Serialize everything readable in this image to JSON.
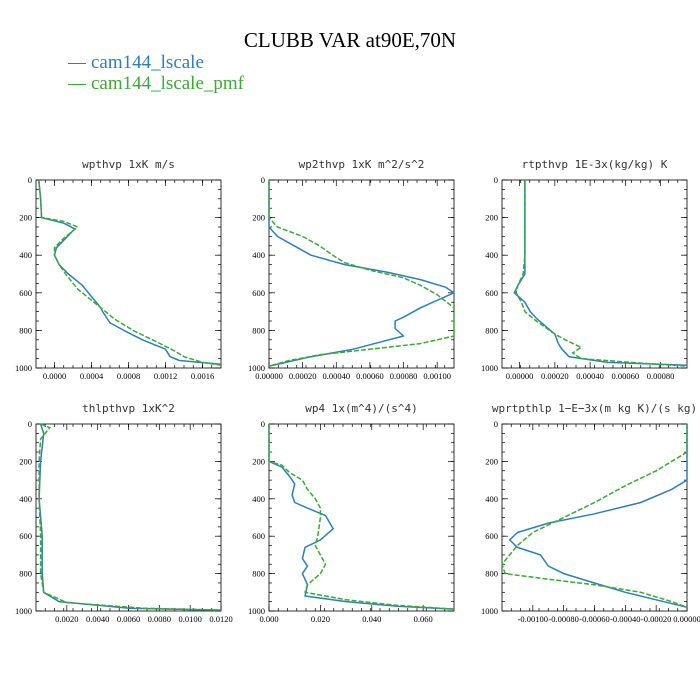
{
  "title": "CLUBB VAR at90E,70N",
  "legend": [
    {
      "label": "cam144_lscale",
      "color": "#2e7ebc"
    },
    {
      "label": "cam144_lscale_pmf",
      "color": "#3aa935"
    }
  ],
  "chart_data": [
    {
      "type": "line",
      "title": "wpthvp   1xK m/s",
      "xlim": [
        -0.0002,
        0.0018
      ],
      "ylim": [
        1000,
        0
      ],
      "xticks": [
        0,
        0.0004,
        0.0008,
        0.0012,
        0.0016
      ],
      "xtick_labels": [
        "0.0000",
        "0.0004",
        "0.0008",
        "0.0012",
        "0.0016"
      ],
      "yticks": [
        0,
        200,
        400,
        600,
        800,
        1000
      ],
      "ytick_labels": [
        "0",
        "200",
        "400",
        "600",
        "800",
        "1000"
      ],
      "series": [
        {
          "name": "cam144_lscale",
          "points": [
            [
              -0.00017,
              0
            ],
            [
              -0.00015,
              100
            ],
            [
              -0.00014,
              200
            ],
            [
              0.0001,
              230
            ],
            [
              0.00022,
              260
            ],
            [
              0.00012,
              310
            ],
            [
              2e-05,
              360
            ],
            [
              0.0,
              400
            ],
            [
              5e-05,
              450
            ],
            [
              0.00015,
              500
            ],
            [
              0.0003,
              560
            ],
            [
              0.0004,
              620
            ],
            [
              0.0005,
              680
            ],
            [
              0.00052,
              700
            ],
            [
              0.0006,
              760
            ],
            [
              0.00075,
              800
            ],
            [
              0.00095,
              850
            ],
            [
              0.0012,
              900
            ],
            [
              0.00125,
              940
            ],
            [
              0.00135,
              960
            ],
            [
              0.0018,
              980
            ]
          ]
        },
        {
          "name": "cam144_lscale_pmf",
          "points": [
            [
              -0.00017,
              0
            ],
            [
              -0.00015,
              100
            ],
            [
              -0.00014,
              200
            ],
            [
              0.0001,
              220
            ],
            [
              0.00025,
              250
            ],
            [
              0.0001,
              310
            ],
            [
              0.0,
              360
            ],
            [
              0.0,
              400
            ],
            [
              5e-05,
              450
            ],
            [
              0.00012,
              500
            ],
            [
              0.00025,
              580
            ],
            [
              0.0004,
              640
            ],
            [
              0.0005,
              680
            ],
            [
              0.00065,
              740
            ],
            [
              0.00085,
              800
            ],
            [
              0.0011,
              860
            ],
            [
              0.0013,
              910
            ],
            [
              0.0014,
              940
            ],
            [
              0.0016,
              970
            ],
            [
              0.0018,
              985
            ]
          ]
        }
      ]
    },
    {
      "type": "line",
      "title": "wp2thvp   1xK m^2/s^2",
      "xlim": [
        0,
        0.0011
      ],
      "ylim": [
        1000,
        0
      ],
      "xticks": [
        0,
        0.0002,
        0.0004,
        0.0006,
        0.0008,
        0.001
      ],
      "xtick_labels": [
        "0.00000",
        "0.00020",
        "0.00040",
        "0.00060",
        "0.00080",
        "0.00100"
      ],
      "yticks": [
        0,
        200,
        400,
        600,
        800,
        1000
      ],
      "ytick_labels": [
        "0",
        "200",
        "400",
        "600",
        "800",
        "1000"
      ],
      "series": [
        {
          "name": "cam144_lscale",
          "points": [
            [
              0,
              0
            ],
            [
              0,
              200
            ],
            [
              0,
              250
            ],
            [
              5e-05,
              300
            ],
            [
              0.00015,
              350
            ],
            [
              0.00025,
              400
            ],
            [
              0.00045,
              450
            ],
            [
              0.0007,
              490
            ],
            [
              0.0009,
              530
            ],
            [
              0.00105,
              570
            ],
            [
              0.0011,
              600
            ],
            [
              0.001,
              640
            ],
            [
              0.0009,
              680
            ],
            [
              0.0008,
              730
            ],
            [
              0.00075,
              750
            ],
            [
              0.00075,
              790
            ],
            [
              0.0008,
              830
            ],
            [
              0.0005,
              900
            ],
            [
              0.00025,
              940
            ],
            [
              0.0001,
              970
            ],
            [
              0,
              990
            ]
          ]
        },
        {
          "name": "cam144_lscale_pmf",
          "points": [
            [
              0,
              0
            ],
            [
              0,
              200
            ],
            [
              5e-05,
              250
            ],
            [
              0.0002,
              300
            ],
            [
              0.0003,
              350
            ],
            [
              0.00038,
              400
            ],
            [
              0.00045,
              440
            ],
            [
              0.0006,
              480
            ],
            [
              0.0008,
              520
            ],
            [
              0.0009,
              560
            ],
            [
              0.001,
              610
            ],
            [
              0.0011,
              680
            ],
            [
              0.0011,
              750
            ],
            [
              0.0011,
              830
            ],
            [
              0.0009,
              870
            ],
            [
              0.0006,
              900
            ],
            [
              0.0003,
              930
            ],
            [
              0.00012,
              960
            ],
            [
              0,
              990
            ]
          ]
        }
      ]
    },
    {
      "type": "line",
      "title": "rtpthvp   1E-3x(kg/kg) K",
      "xlim": [
        -0.0001,
        0.00095
      ],
      "ylim": [
        1000,
        0
      ],
      "xticks": [
        0,
        0.0002,
        0.0004,
        0.0006,
        0.0008
      ],
      "xtick_labels": [
        "0.00000",
        "0.00020",
        "0.00040",
        "0.00060",
        "0.00080"
      ],
      "yticks": [
        0,
        200,
        400,
        600,
        800,
        1000
      ],
      "ytick_labels": [
        "0",
        "200",
        "400",
        "600",
        "800",
        "1000"
      ],
      "series": [
        {
          "name": "cam144_lscale",
          "points": [
            [
              3e-05,
              0
            ],
            [
              3e-05,
              250
            ],
            [
              3e-05,
              400
            ],
            [
              3e-05,
              500
            ],
            [
              -1e-05,
              560
            ],
            [
              -3e-05,
              600
            ],
            [
              3e-05,
              650
            ],
            [
              6e-05,
              700
            ],
            [
              0.0001,
              740
            ],
            [
              0.00015,
              780
            ],
            [
              0.0002,
              820
            ],
            [
              0.00022,
              870
            ],
            [
              0.00024,
              900
            ],
            [
              0.00028,
              940
            ],
            [
              0.0005,
              970
            ],
            [
              0.00095,
              985
            ]
          ]
        },
        {
          "name": "cam144_lscale_pmf",
          "points": [
            [
              3e-05,
              0
            ],
            [
              3e-05,
              250
            ],
            [
              3e-05,
              400
            ],
            [
              2e-05,
              500
            ],
            [
              -1e-05,
              560
            ],
            [
              -2e-05,
              600
            ],
            [
              1e-05,
              650
            ],
            [
              3e-05,
              700
            ],
            [
              8e-05,
              740
            ],
            [
              0.00014,
              780
            ],
            [
              0.0002,
              820
            ],
            [
              0.00028,
              860
            ],
            [
              0.00035,
              890
            ],
            [
              0.0003,
              920
            ],
            [
              0.00035,
              950
            ],
            [
              0.0007,
              975
            ],
            [
              0.00095,
              990
            ]
          ]
        }
      ]
    },
    {
      "type": "line",
      "title": "thlpthvp   1xK^2",
      "xlim": [
        0,
        0.012
      ],
      "ylim": [
        1000,
        0
      ],
      "xticks": [
        0.002,
        0.004,
        0.006,
        0.008,
        0.01,
        0.012
      ],
      "xtick_labels": [
        "0.0020",
        "0.0040",
        "0.0060",
        "0.0080",
        "0.0100",
        "0.0120"
      ],
      "yticks": [
        0,
        200,
        400,
        600,
        800,
        1000
      ],
      "ytick_labels": [
        "0",
        "200",
        "400",
        "600",
        "800",
        "1000"
      ],
      "series": [
        {
          "name": "cam144_lscale",
          "points": [
            [
              0.0003,
              0
            ],
            [
              0.0005,
              50
            ],
            [
              0.0003,
              200
            ],
            [
              0.0002,
              400
            ],
            [
              0.0004,
              600
            ],
            [
              0.0004,
              800
            ],
            [
              0.0005,
              900
            ],
            [
              0.0015,
              950
            ],
            [
              0.006,
              985
            ],
            [
              0.012,
              995
            ]
          ]
        },
        {
          "name": "cam144_lscale_pmf",
          "points": [
            [
              0.0003,
              0
            ],
            [
              0.0009,
              20
            ],
            [
              0.0003,
              80
            ],
            [
              0.0002,
              200
            ],
            [
              0.0002,
              400
            ],
            [
              0.0003,
              600
            ],
            [
              0.0003,
              800
            ],
            [
              0.0005,
              900
            ],
            [
              0.002,
              955
            ],
            [
              0.007,
              985
            ],
            [
              0.012,
              995
            ]
          ]
        }
      ]
    },
    {
      "type": "line",
      "title": "wp4   1x(m^4)/(s^4)",
      "xlim": [
        0,
        0.072
      ],
      "ylim": [
        1000,
        0
      ],
      "xticks": [
        0,
        0.02,
        0.04,
        0.06
      ],
      "xtick_labels": [
        "0.000",
        "0.020",
        "0.040",
        "0.060"
      ],
      "yticks": [
        0,
        200,
        400,
        600,
        800,
        1000
      ],
      "ytick_labels": [
        "0",
        "200",
        "400",
        "600",
        "800",
        "1000"
      ],
      "series": [
        {
          "name": "cam144_lscale",
          "points": [
            [
              0,
              0
            ],
            [
              0,
              200
            ],
            [
              0.005,
              230
            ],
            [
              0.008,
              280
            ],
            [
              0.01,
              320
            ],
            [
              0.009,
              380
            ],
            [
              0.01,
              420
            ],
            [
              0.015,
              450
            ],
            [
              0.022,
              490
            ],
            [
              0.025,
              560
            ],
            [
              0.02,
              620
            ],
            [
              0.014,
              660
            ],
            [
              0.013,
              720
            ],
            [
              0.015,
              760
            ],
            [
              0.013,
              800
            ],
            [
              0.015,
              860
            ],
            [
              0.014,
              920
            ],
            [
              0.03,
              950
            ],
            [
              0.05,
              975
            ],
            [
              0.072,
              990
            ]
          ]
        },
        {
          "name": "cam144_lscale_pmf",
          "points": [
            [
              0,
              0
            ],
            [
              0,
              200
            ],
            [
              0.005,
              220
            ],
            [
              0.008,
              260
            ],
            [
              0.013,
              300
            ],
            [
              0.015,
              350
            ],
            [
              0.018,
              400
            ],
            [
              0.02,
              450
            ],
            [
              0.02,
              500
            ],
            [
              0.019,
              600
            ],
            [
              0.018,
              650
            ],
            [
              0.02,
              700
            ],
            [
              0.022,
              750
            ],
            [
              0.02,
              800
            ],
            [
              0.015,
              860
            ],
            [
              0.014,
              900
            ],
            [
              0.03,
              940
            ],
            [
              0.05,
              970
            ],
            [
              0.072,
              990
            ]
          ]
        }
      ]
    },
    {
      "type": "line",
      "title": "wprtpthlp   1−E−3x(m kg K)/(s kg)",
      "xlim": [
        -0.0012,
        0
      ],
      "ylim": [
        1000,
        0
      ],
      "xticks": [
        -0.001,
        -0.0008,
        -0.0006,
        -0.0004,
        -0.0002,
        0
      ],
      "xtick_labels": [
        "-0.00100",
        "-0.00080",
        "-0.00060",
        "-0.00040",
        "-0.00020",
        "0.00000"
      ],
      "yticks": [
        0,
        200,
        400,
        600,
        800,
        1000
      ],
      "ytick_labels": [
        "0",
        "200",
        "400",
        "600",
        "800",
        "1000"
      ],
      "series": [
        {
          "name": "cam144_lscale",
          "points": [
            [
              0,
              0
            ],
            [
              0,
              200
            ],
            [
              0,
              300
            ],
            [
              -0.0001,
              350
            ],
            [
              -0.0003,
              420
            ],
            [
              -0.0006,
              480
            ],
            [
              -0.0009,
              530
            ],
            [
              -0.0011,
              580
            ],
            [
              -0.00115,
              620
            ],
            [
              -0.0011,
              660
            ],
            [
              -0.00095,
              700
            ],
            [
              -0.0009,
              760
            ],
            [
              -0.0008,
              800
            ],
            [
              -0.0006,
              850
            ],
            [
              -0.0004,
              900
            ],
            [
              -0.0002,
              940
            ],
            [
              0,
              980
            ]
          ]
        },
        {
          "name": "cam144_lscale_pmf",
          "points": [
            [
              0,
              0
            ],
            [
              0,
              150
            ],
            [
              -0.0002,
              250
            ],
            [
              -0.0004,
              330
            ],
            [
              -0.0006,
              420
            ],
            [
              -0.0008,
              500
            ],
            [
              -0.001,
              580
            ],
            [
              -0.0011,
              650
            ],
            [
              -0.00115,
              700
            ],
            [
              -0.0012,
              750
            ],
            [
              -0.00118,
              800
            ],
            [
              -0.0009,
              830
            ],
            [
              -0.0006,
              860
            ],
            [
              -0.0003,
              900
            ],
            [
              -0.0001,
              950
            ],
            [
              0,
              980
            ]
          ]
        }
      ]
    }
  ]
}
